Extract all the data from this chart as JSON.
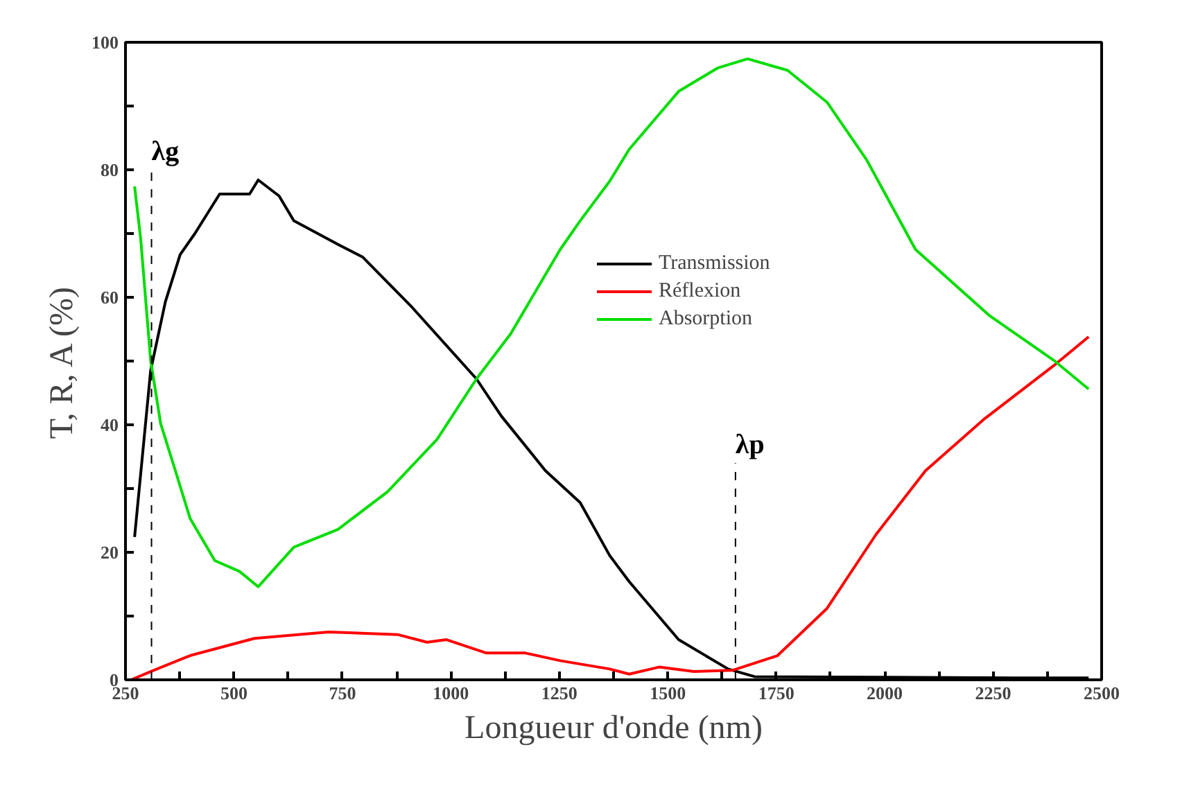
{
  "chart_data": {
    "type": "line",
    "xlabel": "Longueur d'onde (nm)",
    "ylabel": "T, R, A (%)",
    "xlim": [
      250,
      2500
    ],
    "ylim": [
      0,
      100
    ],
    "xticks": [
      250,
      {
        "value": 375,
        "label": null
      },
      500,
      {
        "value": 625,
        "label": null
      },
      750,
      {
        "value": 875,
        "label": null
      },
      1000,
      {
        "value": 1125,
        "label": null
      },
      1250,
      {
        "value": 1375,
        "label": null
      },
      1500,
      {
        "value": 1625,
        "label": null
      },
      1750,
      {
        "value": 1875,
        "label": null
      },
      2000,
      {
        "value": 2125,
        "label": null
      },
      2250,
      {
        "value": 2375,
        "label": null
      },
      2500
    ],
    "yticks": [
      0,
      {
        "value": 10,
        "label": null
      },
      20,
      {
        "value": 30,
        "label": null
      },
      40,
      {
        "value": 50,
        "label": null
      },
      60,
      {
        "value": 70,
        "label": null
      },
      80,
      {
        "value": 90,
        "label": null
      },
      100
    ],
    "grid": false,
    "legend": "top right",
    "marker": "none",
    "line_style": "solid",
    "series": [
      {
        "name": "Transmission",
        "color": "#000000",
        "x": [
          271,
          308,
          342,
          376,
          410,
          467,
          536,
          556,
          604,
          638,
          740,
          797,
          911,
          1059,
          1116,
          1218,
          1298,
          1366,
          1411,
          1525,
          1639,
          1700,
          2000,
          2300,
          2470
        ],
        "values": [
          22.4,
          48.5,
          59.3,
          66.7,
          70,
          76.2,
          76.2,
          78.4,
          75.9,
          72,
          68.3,
          66.3,
          58.4,
          47.2,
          41.4,
          32.8,
          27.8,
          19.5,
          15.4,
          6.3,
          1.7,
          0.5,
          0.4,
          0.3,
          0.3
        ]
      },
      {
        "name": "Réflexion",
        "color": "#ff0000",
        "x": [
          263,
          308,
          399,
          547,
          718,
          877,
          945,
          990,
          1082,
          1172,
          1252,
          1366,
          1411,
          1480,
          1560,
          1650,
          1753,
          1867,
          1980,
          2094,
          2231,
          2390,
          2470
        ],
        "values": [
          0,
          1.3,
          3.8,
          6.5,
          7.5,
          7.1,
          5.9,
          6.3,
          4.2,
          4.2,
          3,
          1.7,
          0.9,
          2,
          1.3,
          1.5,
          3.8,
          11.2,
          22.8,
          32.8,
          41,
          49.3,
          53.8
        ]
      },
      {
        "name": "Absorption",
        "color": "#00dd00",
        "x": [
          271,
          285,
          308,
          331,
          365,
          399,
          456,
          513,
          556,
          638,
          740,
          854,
          968,
          1059,
          1138,
          1252,
          1298,
          1366,
          1411,
          1525,
          1616,
          1684,
          1776,
          1867,
          1958,
          2071,
          2242,
          2390,
          2470
        ],
        "values": [
          77.4,
          69.2,
          50.1,
          40.2,
          32.8,
          25.3,
          18.7,
          17,
          14.6,
          20.8,
          23.6,
          29.5,
          37.7,
          47.2,
          54.3,
          67.5,
          72,
          78.2,
          83.2,
          92.3,
          96,
          97.4,
          95.6,
          90.6,
          81.6,
          67.5,
          57.1,
          50.1,
          45.6
        ]
      }
    ],
    "ref_lines": [
      {
        "axis": "x",
        "value": 310,
        "label": "λg",
        "line_style": "dashed",
        "color": "#000000"
      },
      {
        "axis": "x",
        "value": 1656,
        "label": "λp",
        "line_style": "dashed",
        "color": "#000000"
      }
    ]
  }
}
